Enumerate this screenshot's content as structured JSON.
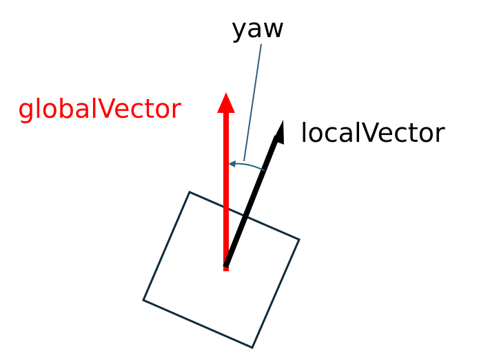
{
  "labels": {
    "yaw": "yaw",
    "global_vector": "globalVector",
    "local_vector": "localVector"
  },
  "colors": {
    "global_vector": "#ff0000",
    "local_vector": "#000000",
    "yaw_annotation": "#2a5f7f",
    "body_square": "#0e2b3a",
    "background": "#ffffff"
  }
}
